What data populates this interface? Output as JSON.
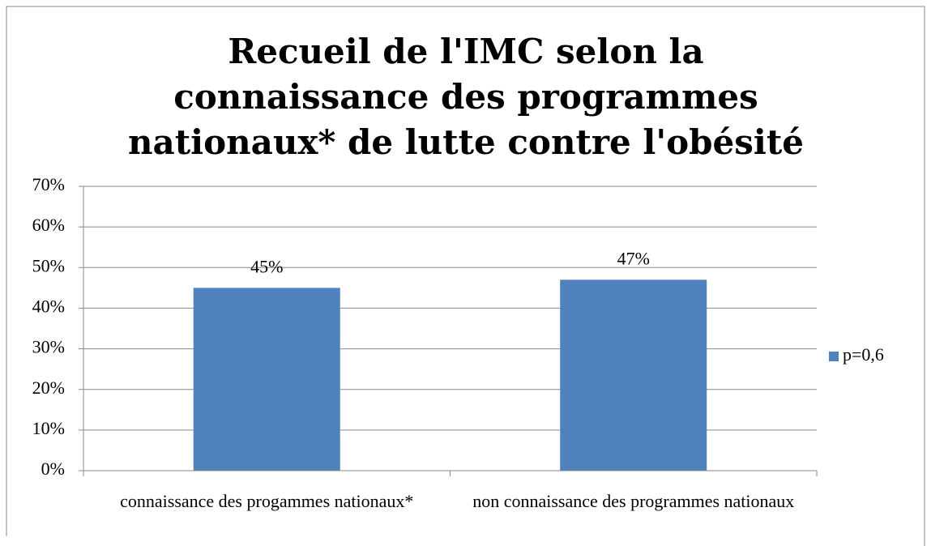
{
  "chart_data": {
    "type": "bar",
    "title": "Recueil de l'IMC selon la connaissance des programmes nationaux* de lutte contre l'obésité",
    "categories": [
      "connaissance des progammes nationaux*",
      "non connaissance des programmes nationaux"
    ],
    "series": [
      {
        "name": "p=0,6",
        "color": "#4f81bd",
        "values": [
          45,
          47
        ],
        "value_labels": [
          "45%",
          "47%"
        ]
      }
    ],
    "ylim": [
      0,
      70
    ],
    "yticks": [
      {
        "value": 0,
        "label": "0%"
      },
      {
        "value": 10,
        "label": "10%"
      },
      {
        "value": 20,
        "label": "20%"
      },
      {
        "value": 30,
        "label": "30%"
      },
      {
        "value": 40,
        "label": "40%"
      },
      {
        "value": 50,
        "label": "50%"
      },
      {
        "value": 60,
        "label": "60%"
      },
      {
        "value": 70,
        "label": "70%"
      }
    ],
    "grid": true,
    "legend": "right"
  }
}
